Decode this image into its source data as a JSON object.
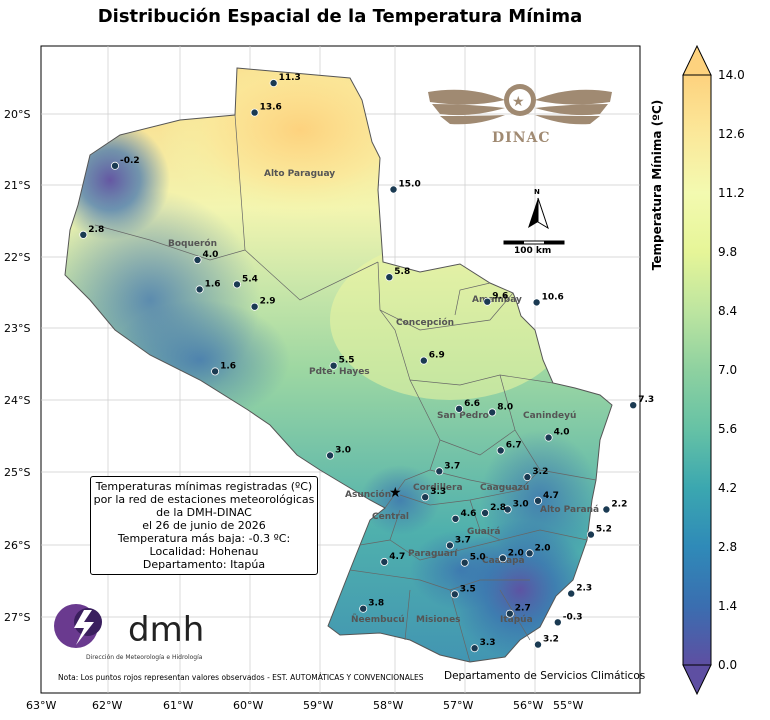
{
  "title": "Distribución Espacial de la Temperatura Mínima",
  "axes": {
    "x_ticks": [
      "63°W",
      "62°W",
      "61°W",
      "60°W",
      "59°W",
      "58°W",
      "57°W",
      "56°W",
      "55°W"
    ],
    "y_ticks": [
      "20°S",
      "21°S",
      "22°S",
      "23°S",
      "24°S",
      "25°S",
      "26°S",
      "27°S"
    ]
  },
  "colorbar": {
    "label": "Temperatura Mínima (ºC)",
    "ticks": [
      "0.0",
      "1.4",
      "2.8",
      "4.2",
      "5.6",
      "7.0",
      "8.4",
      "9.8",
      "11.2",
      "12.6",
      "14.0"
    ]
  },
  "departments": [
    {
      "name": "Alto Paraguay"
    },
    {
      "name": "Boquerón"
    },
    {
      "name": "Concepción"
    },
    {
      "name": "Amambay"
    },
    {
      "name": "Pdte. Hayes"
    },
    {
      "name": "San Pedro"
    },
    {
      "name": "Canindeyú"
    },
    {
      "name": "Cordillera"
    },
    {
      "name": "Caaguazú"
    },
    {
      "name": "Asunción"
    },
    {
      "name": "Central"
    },
    {
      "name": "Alto Paraná"
    },
    {
      "name": "Guairá"
    },
    {
      "name": "Paraguarí"
    },
    {
      "name": "Caazapá"
    },
    {
      "name": "Ñeembucú"
    },
    {
      "name": "Misiones"
    },
    {
      "name": "Itapúa"
    }
  ],
  "stations": [
    {
      "value": "11.3",
      "lon": -59.7,
      "lat": -19.57
    },
    {
      "value": "13.6",
      "lon": -59.97,
      "lat": -19.98
    },
    {
      "value": "-0.2",
      "lon": -61.95,
      "lat": -20.72
    },
    {
      "value": "15.0",
      "lon": -58.0,
      "lat": -21.05
    },
    {
      "value": "2.8",
      "lon": -62.4,
      "lat": -21.68
    },
    {
      "value": "4.0",
      "lon": -60.78,
      "lat": -22.03
    },
    {
      "value": "5.8",
      "lon": -58.06,
      "lat": -22.27
    },
    {
      "value": "1.6",
      "lon": -60.75,
      "lat": -22.44
    },
    {
      "value": "5.4",
      "lon": -60.22,
      "lat": -22.37
    },
    {
      "value": "9.6",
      "lon": -56.67,
      "lat": -22.61
    },
    {
      "value": "10.6",
      "lon": -55.97,
      "lat": -22.62
    },
    {
      "value": "2.9",
      "lon": -59.97,
      "lat": -22.68
    },
    {
      "value": "6.9",
      "lon": -57.57,
      "lat": -23.43
    },
    {
      "value": "5.5",
      "lon": -58.85,
      "lat": -23.5
    },
    {
      "value": "1.6",
      "lon": -60.53,
      "lat": -23.58
    },
    {
      "value": "7.3",
      "lon": -54.6,
      "lat": -24.05
    },
    {
      "value": "6.6",
      "lon": -57.07,
      "lat": -24.1
    },
    {
      "value": "8.0",
      "lon": -56.6,
      "lat": -24.15
    },
    {
      "value": "4.0",
      "lon": -55.8,
      "lat": -24.5
    },
    {
      "value": "6.7",
      "lon": -56.48,
      "lat": -24.68
    },
    {
      "value": "3.0",
      "lon": -58.9,
      "lat": -24.75
    },
    {
      "value": "3.7",
      "lon": -57.35,
      "lat": -24.97
    },
    {
      "value": "3.2",
      "lon": -56.1,
      "lat": -25.05
    },
    {
      "value": "3.3",
      "lon": -57.55,
      "lat": -25.33
    },
    {
      "value": "4.7",
      "lon": -55.95,
      "lat": -25.38
    },
    {
      "value": "2.2",
      "lon": -54.98,
      "lat": -25.5
    },
    {
      "value": "3.0",
      "lon": -56.38,
      "lat": -25.5
    },
    {
      "value": "2.8",
      "lon": -56.7,
      "lat": -25.55
    },
    {
      "value": "4.6",
      "lon": -57.12,
      "lat": -25.63
    },
    {
      "value": "5.2",
      "lon": -55.2,
      "lat": -25.85
    },
    {
      "value": "3.7",
      "lon": -57.2,
      "lat": -26.0
    },
    {
      "value": "2.0",
      "lon": -56.45,
      "lat": -26.18
    },
    {
      "value": "2.0",
      "lon": -56.07,
      "lat": -26.11
    },
    {
      "value": "4.7",
      "lon": -58.13,
      "lat": -26.23
    },
    {
      "value": "5.0",
      "lon": -56.99,
      "lat": -26.24
    },
    {
      "value": "3.5",
      "lon": -57.13,
      "lat": -26.68
    },
    {
      "value": "2.3",
      "lon": -55.48,
      "lat": -26.67
    },
    {
      "value": "3.8",
      "lon": -58.43,
      "lat": -26.88
    },
    {
      "value": "2.7",
      "lon": -56.35,
      "lat": -26.95
    },
    {
      "value": "-0.3",
      "lon": -55.67,
      "lat": -27.07
    },
    {
      "value": "3.2",
      "lon": -55.95,
      "lat": -27.38
    },
    {
      "value": "3.3",
      "lon": -56.85,
      "lat": -27.43
    }
  ],
  "infobox": {
    "lines": [
      "Temperaturas mínimas registradas (ºC)",
      "por la red de estaciones meteorológicas",
      "de la DMH-DINAC",
      "el 26 de junio de 2026",
      "Temperatura más baja: -0.3 ºC:",
      "Localidad: Hohenau",
      "Departamento: Itapúa"
    ]
  },
  "scale_bar": {
    "label": "100 km"
  },
  "north_arrow": {
    "label": "N"
  },
  "logos": {
    "dinac": {
      "text": "DINAC"
    },
    "dmh": {
      "text": "dmh",
      "subtitle": "Dirección de Meteorología e Hidrología"
    }
  },
  "note": "Nota: Los puntos rojos representan valores observados - EST. AUTOMÁTICAS Y CONVENCIONALES",
  "credit": "Departamento de Servicios Climáticos",
  "colors": {
    "station": "#1a3a52",
    "border": "#555555"
  }
}
